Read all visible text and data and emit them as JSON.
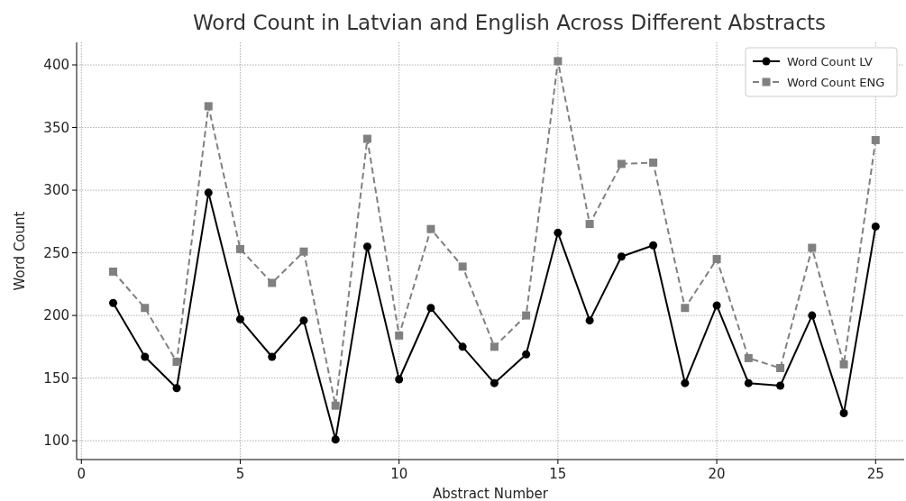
{
  "chart_data": {
    "type": "line",
    "title": "Word Count in Latvian and English Across Different Abstracts",
    "xlabel": "Abstract Number",
    "ylabel": "Word Count",
    "x": [
      1,
      2,
      3,
      4,
      5,
      6,
      7,
      8,
      9,
      10,
      11,
      12,
      13,
      14,
      15,
      16,
      17,
      18,
      19,
      20,
      21,
      22,
      23,
      24,
      25
    ],
    "series": [
      {
        "name": "Word Count LV",
        "color": "#000000",
        "marker": "circle",
        "line_style": "solid",
        "values": [
          210,
          167,
          142,
          298,
          197,
          167,
          196,
          101,
          255,
          149,
          206,
          175,
          146,
          169,
          266,
          196,
          247,
          256,
          146,
          208,
          146,
          144,
          200,
          122,
          271
        ]
      },
      {
        "name": "Word Count ENG",
        "color": "#808080",
        "marker": "square",
        "line_style": "dashed",
        "values": [
          235,
          206,
          163,
          367,
          253,
          226,
          251,
          128,
          341,
          184,
          269,
          239,
          175,
          200,
          403,
          273,
          321,
          322,
          206,
          245,
          166,
          158,
          254,
          161,
          340
        ]
      }
    ],
    "xlim": [
      -0.15,
      25.9
    ],
    "ylim": [
      85,
      418
    ],
    "xticks": [
      0,
      5,
      10,
      15,
      20,
      25
    ],
    "yticks": [
      100,
      150,
      200,
      250,
      300,
      350,
      400
    ],
    "grid": true,
    "legend": "top right"
  }
}
